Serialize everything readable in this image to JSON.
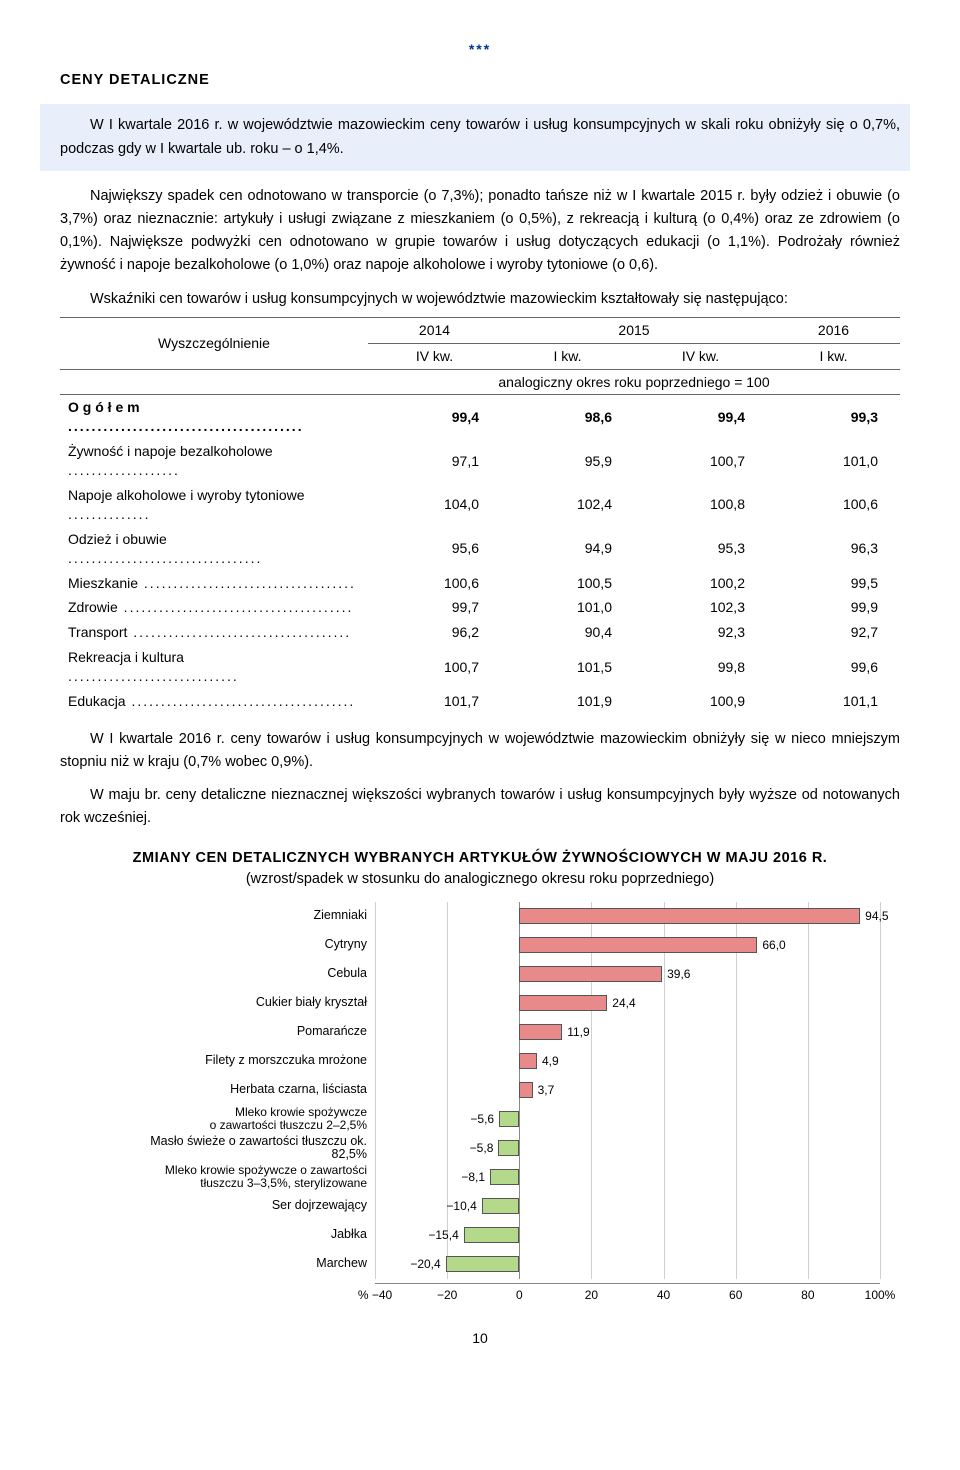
{
  "stars": "***",
  "section_heading": "CENY  DETALICZNE",
  "highlight": "W I kwartale 2016 r. w województwie mazowieckim ceny towarów i usług konsumpcyjnych w skali roku obniżyły się o 0,7%, podczas gdy w I kwartale ub. roku – o 1,4%.",
  "para1": "Największy spadek cen odnotowano w transporcie (o 7,3%); ponadto tańsze niż w I kwartale 2015 r. były odzież i obuwie (o 3,7%) oraz nieznacznie: artykuły i usługi związane z mieszkaniem (o 0,5%), z rekreacją i kulturą (o 0,4%) oraz ze zdrowiem (o 0,1%). Największe podwyżki cen odnotowano w grupie towarów i usług dotyczących edukacji (o 1,1%). Podrożały również żywność i napoje bezalkoholowe (o 1,0%) oraz napoje alkoholowe i wyroby tytoniowe (o 0,6).",
  "para2": "Wskaźniki cen towarów i usług konsumpcyjnych w województwie mazowieckim kształtowały się następująco:",
  "table": {
    "spec_label": "Wyszczególnienie",
    "year_2014": "2014",
    "year_2015": "2015",
    "year_2016": "2016",
    "col_ivkw": "IV kw.",
    "col_ikw": "I kw.",
    "footnote": "analogiczny okres roku poprzedniego = 100",
    "rows": [
      {
        "label": "O g ó ł e m",
        "bold": true,
        "v": [
          "99,4",
          "98,6",
          "99,4",
          "99,3"
        ]
      },
      {
        "label": "Żywność i napoje bezalkoholowe",
        "v": [
          "97,1",
          "95,9",
          "100,7",
          "101,0"
        ]
      },
      {
        "label": "Napoje alkoholowe i wyroby tytoniowe",
        "v": [
          "104,0",
          "102,4",
          "100,8",
          "100,6"
        ]
      },
      {
        "label": "Odzież i obuwie",
        "v": [
          "95,6",
          "94,9",
          "95,3",
          "96,3"
        ]
      },
      {
        "label": "Mieszkanie",
        "v": [
          "100,6",
          "100,5",
          "100,2",
          "99,5"
        ]
      },
      {
        "label": "Zdrowie",
        "v": [
          "99,7",
          "101,0",
          "102,3",
          "99,9"
        ]
      },
      {
        "label": "Transport",
        "v": [
          "96,2",
          "90,4",
          "92,3",
          "92,7"
        ]
      },
      {
        "label": "Rekreacja i kultura",
        "v": [
          "100,7",
          "101,5",
          "99,8",
          "99,6"
        ]
      },
      {
        "label": "Edukacja",
        "v": [
          "101,7",
          "101,9",
          "100,9",
          "101,1"
        ]
      }
    ]
  },
  "para3": "W I kwartale 2016 r. ceny towarów i usług konsumpcyjnych w województwie mazowieckim obniżyły się w nieco mniejszym stopniu niż w kraju (0,7% wobec 0,9%).",
  "para4": "W maju br. ceny detaliczne nieznacznej większości wybranych towarów i usług konsumpcyjnych były wyższe od notowanych rok wcześniej.",
  "chart_title": "ZMIANY  CEN  DETALICZNYCH  WYBRANYCH  ARTYKUŁÓW  ŻYWNOŚCIOWYCH  W  MAJU  2016 R.",
  "chart_sub": "(wzrost/spadek w stosunku do analogicznego okresu roku poprzedniego)",
  "chart": {
    "type": "bar-horizontal",
    "xmin": -40,
    "xmax": 100,
    "xticks": [
      -40,
      -20,
      0,
      20,
      40,
      60,
      80,
      100
    ],
    "xtick_labels": [
      "% −40",
      "−20",
      "0",
      "20",
      "40",
      "60",
      "80",
      "100%"
    ],
    "pos_color": "#e98a8a",
    "neg_color": "#b4d98a",
    "border_color": "#555555",
    "grid_color": "#d0d0d0",
    "items": [
      {
        "label": "Ziemniaki",
        "value": 94.5,
        "text": "94,5"
      },
      {
        "label": "Cytryny",
        "value": 66.0,
        "text": "66,0"
      },
      {
        "label": "Cebula",
        "value": 39.6,
        "text": "39,6"
      },
      {
        "label": "Cukier biały kryształ",
        "value": 24.4,
        "text": "24,4"
      },
      {
        "label": "Pomarańcze",
        "value": 11.9,
        "text": "11,9"
      },
      {
        "label": "Filety z morszczuka mrożone",
        "value": 4.9,
        "text": "4,9"
      },
      {
        "label": "Herbata czarna, liściasta",
        "value": 3.7,
        "text": "3,7"
      },
      {
        "label": "Mleko krowie spożywcze\no zawartości tłuszczu 2–2,5%",
        "value": -5.6,
        "text": "−5,6"
      },
      {
        "label": "Masło świeże o zawartości tłuszczu ok. 82,5%",
        "value": -5.8,
        "text": "−5,8"
      },
      {
        "label": "Mleko krowie spożywcze o zawartości\ntłuszczu 3–3,5%, sterylizowane",
        "value": -8.1,
        "text": "−8,1"
      },
      {
        "label": "Ser dojrzewający",
        "value": -10.4,
        "text": "−10,4"
      },
      {
        "label": "Jabłka",
        "value": -15.4,
        "text": "−15,4"
      },
      {
        "label": "Marchew",
        "value": -20.4,
        "text": "−20,4"
      }
    ]
  },
  "pagenum": "10"
}
